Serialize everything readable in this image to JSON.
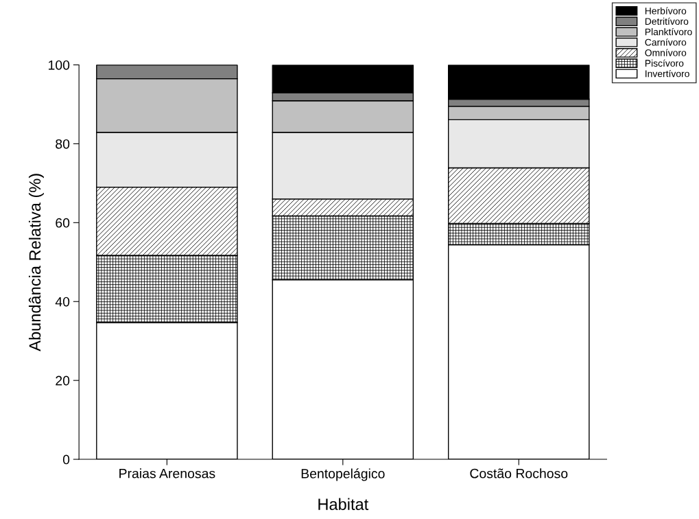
{
  "chart_data": {
    "type": "bar",
    "stacked": true,
    "xlabel": "Habitat",
    "ylabel": "Abundância Relativa (%)",
    "categories": [
      "Praias Arenosas",
      "Bentopelágico",
      "Costão Rochoso"
    ],
    "series": [
      {
        "name": "Invertívoro",
        "color": "#ffffff",
        "values": [
          34.7,
          45.5,
          54.4
        ]
      },
      {
        "name": "Piscívoro",
        "color": "#000000",
        "values": [
          17.0,
          16.2,
          5.4
        ]
      },
      {
        "name": "Omnívoro",
        "color": "#000000",
        "values": [
          17.3,
          4.3,
          14.1
        ]
      },
      {
        "name": "Carnívoro",
        "color": "#e8e8e8",
        "values": [
          13.9,
          16.9,
          12.2
        ]
      },
      {
        "name": "Planktívoro",
        "color": "#c0c0c0",
        "values": [
          13.6,
          8.0,
          3.4
        ]
      },
      {
        "name": "Detritívoro",
        "color": "#808080",
        "values": [
          3.5,
          2.0,
          1.8
        ]
      },
      {
        "name": "Herbívoro",
        "color": "#000000",
        "values": [
          0,
          7.1,
          8.7
        ]
      }
    ],
    "ylim": [
      0,
      100
    ],
    "yticks": [
      0,
      20,
      40,
      60,
      80,
      100
    ],
    "grid": false,
    "legend": "top right"
  }
}
